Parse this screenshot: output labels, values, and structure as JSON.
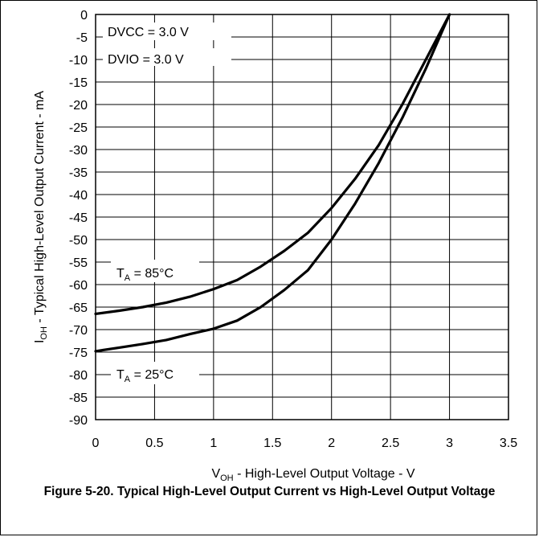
{
  "figure": {
    "caption": "Figure 5-20. Typical High-Level Output Current vs High-Level Output Voltage"
  },
  "chart_data": {
    "type": "line",
    "xlabel": {
      "pre": "V",
      "sub": "OH",
      "post": " - High-Level Output Voltage - V"
    },
    "ylabel": {
      "pre": "I",
      "sub": "OH",
      "post": " - Typical High-Level Output Current - mA"
    },
    "xlim": [
      0,
      3.5
    ],
    "ylim": [
      -90,
      0
    ],
    "x_ticks": [
      "0",
      "0.5",
      "1",
      "1.5",
      "2",
      "2.5",
      "3",
      "3.5"
    ],
    "y_ticks": [
      "0",
      "-5",
      "-10",
      "-15",
      "-20",
      "-25",
      "-30",
      "-35",
      "-40",
      "-45",
      "-50",
      "-55",
      "-60",
      "-65",
      "-70",
      "-75",
      "-80",
      "-85",
      "-90"
    ],
    "grid": true,
    "annotations": {
      "dvcc": "DVCC = 3.0 V",
      "dvio": "DVIO = 3.0 V"
    },
    "series": [
      {
        "name": {
          "pre": "T",
          "sub": "A",
          "post": " = 85°C"
        },
        "color": "#000000",
        "x": [
          0,
          0.2,
          0.4,
          0.6,
          0.8,
          1.0,
          1.2,
          1.4,
          1.6,
          1.8,
          2.0,
          2.2,
          2.4,
          2.6,
          2.8,
          3.0
        ],
        "y": [
          -66.5,
          -65.8,
          -65.0,
          -64.0,
          -62.7,
          -61.0,
          -59.0,
          -56.0,
          -52.5,
          -48.5,
          -43.0,
          -36.5,
          -29.0,
          -20.0,
          -10.0,
          0
        ]
      },
      {
        "name": {
          "pre": "T",
          "sub": "A",
          "post": " = 25°C"
        },
        "color": "#000000",
        "x": [
          0,
          0.2,
          0.4,
          0.6,
          0.8,
          1.0,
          1.2,
          1.4,
          1.6,
          1.8,
          2.0,
          2.2,
          2.4,
          2.6,
          2.8,
          3.0
        ],
        "y": [
          -74.8,
          -74.0,
          -73.2,
          -72.3,
          -71.0,
          -69.8,
          -68.0,
          -65.0,
          -61.2,
          -56.8,
          -50.0,
          -42.0,
          -33.0,
          -23.0,
          -12.0,
          0
        ]
      }
    ]
  }
}
